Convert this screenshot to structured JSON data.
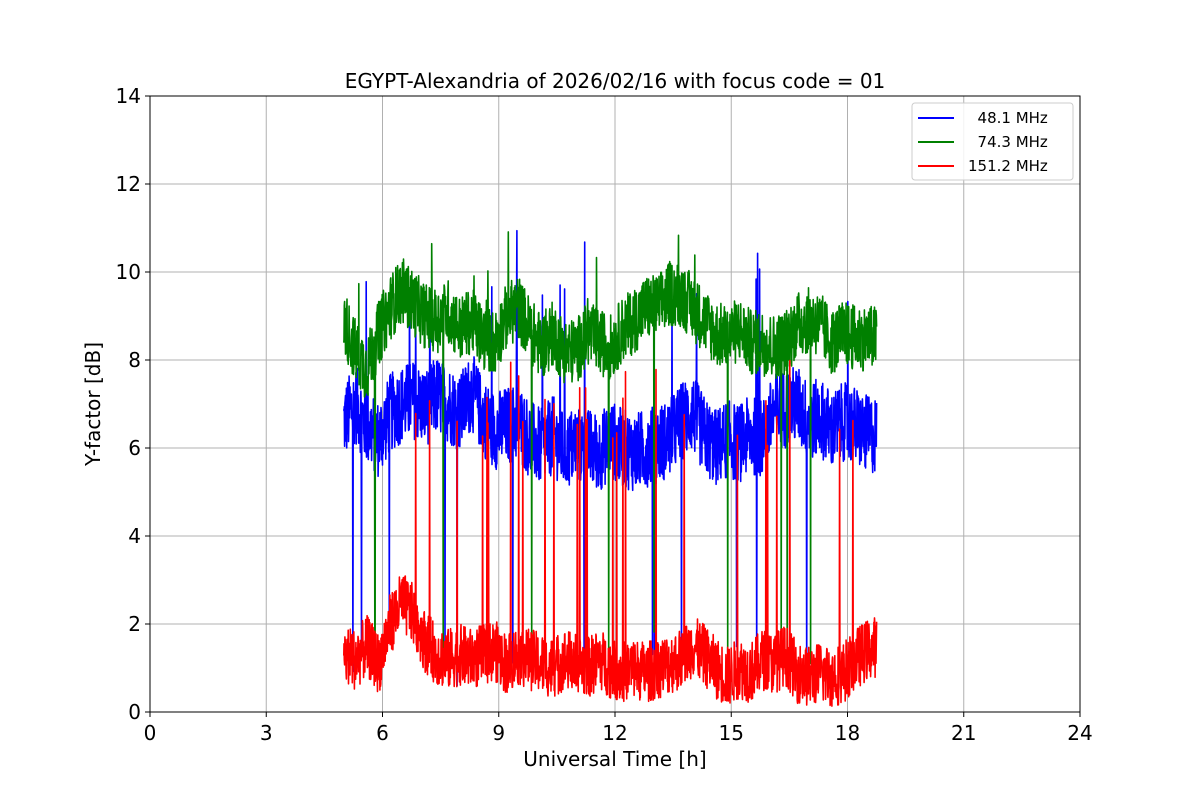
{
  "chart_data": {
    "type": "line",
    "title": "EGYPT-Alexandria of 2026/02/16 with focus code = 01",
    "xlabel": "Universal Time [h]",
    "ylabel": "Y-factor [dB]",
    "xlim": [
      0,
      24
    ],
    "ylim": [
      0,
      14
    ],
    "xticks": [
      0,
      3,
      6,
      9,
      12,
      15,
      18,
      21,
      24
    ],
    "yticks": [
      0,
      2,
      4,
      6,
      8,
      10,
      12,
      14
    ],
    "grid": true,
    "legend_position": "top-right",
    "series": [
      {
        "name": "  48.1 MHz",
        "color": "#0000ff",
        "x": [
          5.0,
          5.3,
          5.6,
          5.9,
          6.2,
          6.5,
          6.8,
          7.1,
          7.4,
          7.7,
          8.0,
          8.3,
          8.6,
          8.9,
          9.2,
          9.5,
          9.8,
          10.1,
          10.4,
          10.7,
          11.0,
          11.3,
          11.6,
          11.9,
          12.2,
          12.5,
          12.8,
          13.1,
          13.4,
          13.7,
          14.0,
          14.3,
          14.6,
          14.9,
          15.2,
          15.5,
          15.8,
          16.1,
          16.4,
          16.7,
          17.0,
          17.3,
          17.6,
          17.9,
          18.2,
          18.5,
          18.75
        ],
        "values": [
          6.6,
          7.0,
          6.5,
          6.2,
          6.8,
          7.0,
          7.1,
          6.9,
          7.2,
          7.0,
          6.8,
          7.3,
          6.7,
          6.4,
          6.5,
          6.6,
          6.2,
          6.0,
          6.3,
          5.9,
          6.1,
          6.0,
          5.9,
          6.2,
          6.0,
          5.9,
          6.0,
          6.1,
          6.2,
          6.6,
          6.8,
          6.3,
          6.0,
          6.2,
          6.1,
          6.3,
          6.2,
          6.8,
          6.9,
          7.0,
          6.6,
          6.7,
          6.4,
          6.6,
          6.5,
          6.3,
          6.3
        ]
      },
      {
        "name": "  74.3 MHz",
        "color": "#008000",
        "x": [
          5.0,
          5.3,
          5.6,
          5.9,
          6.2,
          6.5,
          6.8,
          7.1,
          7.4,
          7.7,
          8.0,
          8.3,
          8.6,
          8.9,
          9.2,
          9.5,
          9.8,
          10.1,
          10.4,
          10.7,
          11.0,
          11.3,
          11.6,
          11.9,
          12.2,
          12.5,
          12.8,
          13.1,
          13.4,
          13.7,
          14.0,
          14.3,
          14.6,
          14.9,
          15.2,
          15.5,
          15.8,
          16.1,
          16.4,
          16.7,
          17.0,
          17.3,
          17.6,
          17.9,
          18.2,
          18.5,
          18.75
        ],
        "values": [
          8.9,
          8.2,
          7.8,
          8.6,
          9.2,
          9.6,
          9.3,
          9.0,
          8.9,
          9.1,
          8.7,
          8.9,
          8.5,
          8.4,
          9.0,
          9.2,
          8.7,
          8.3,
          8.6,
          8.2,
          8.2,
          8.6,
          8.4,
          8.3,
          8.7,
          8.9,
          9.2,
          9.2,
          9.5,
          9.5,
          9.2,
          8.9,
          8.6,
          8.5,
          8.7,
          8.4,
          8.4,
          8.3,
          8.4,
          8.8,
          8.9,
          8.8,
          8.4,
          8.6,
          8.5,
          8.5,
          8.5
        ]
      },
      {
        "name": "151.2 MHz",
        "color": "#ff0000",
        "x": [
          5.0,
          5.3,
          5.6,
          5.9,
          6.2,
          6.5,
          6.8,
          7.1,
          7.4,
          7.7,
          8.0,
          8.3,
          8.6,
          8.9,
          9.2,
          9.5,
          9.8,
          10.1,
          10.4,
          10.7,
          11.0,
          11.3,
          11.6,
          11.9,
          12.2,
          12.5,
          12.8,
          13.1,
          13.4,
          13.7,
          14.0,
          14.3,
          14.6,
          14.9,
          15.2,
          15.5,
          15.8,
          16.1,
          16.4,
          16.7,
          17.0,
          17.3,
          17.6,
          17.9,
          18.2,
          18.5,
          18.75
        ],
        "values": [
          1.3,
          1.2,
          1.5,
          1.1,
          2.0,
          2.5,
          2.2,
          1.6,
          1.3,
          1.2,
          1.3,
          1.2,
          1.3,
          1.4,
          1.1,
          1.3,
          1.2,
          1.1,
          1.0,
          1.2,
          1.1,
          1.0,
          1.2,
          1.0,
          0.9,
          1.0,
          0.9,
          1.0,
          1.1,
          1.2,
          1.5,
          1.3,
          1.0,
          0.8,
          1.0,
          0.9,
          1.2,
          1.1,
          1.3,
          0.9,
          0.8,
          0.9,
          0.8,
          0.9,
          1.2,
          1.4,
          1.5
        ]
      }
    ]
  }
}
